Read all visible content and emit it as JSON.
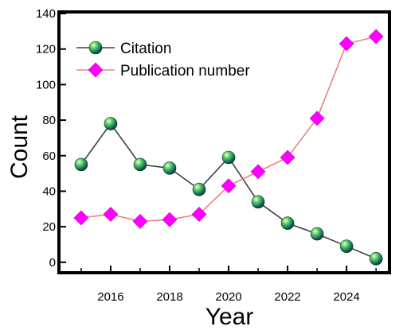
{
  "chart_data": {
    "type": "line",
    "xlabel": "Year",
    "ylabel": "Count",
    "xlim": [
      2014.3,
      2025.4
    ],
    "ylim": [
      -5,
      140
    ],
    "x_ticks": [
      2016,
      2018,
      2020,
      2022,
      2024
    ],
    "y_ticks": [
      0,
      20,
      40,
      60,
      80,
      100,
      120,
      140
    ],
    "x": [
      2015,
      2016,
      2017,
      2018,
      2019,
      2020,
      2021,
      2022,
      2023,
      2024,
      2025
    ],
    "series": [
      {
        "name": "Citation",
        "marker": "sphere",
        "line_color": "#404040",
        "marker_color": "#2e8b57",
        "values": [
          55,
          78,
          55,
          53,
          41,
          59,
          34,
          22,
          16,
          9,
          2
        ]
      },
      {
        "name": "Publication number",
        "marker": "diamond",
        "line_color": "#f08080",
        "marker_color": "#ff00ff",
        "values": [
          25,
          27,
          23,
          24,
          27,
          43,
          51,
          59,
          81,
          123,
          127
        ]
      }
    ],
    "legend_position": "top-left",
    "grid": false
  }
}
